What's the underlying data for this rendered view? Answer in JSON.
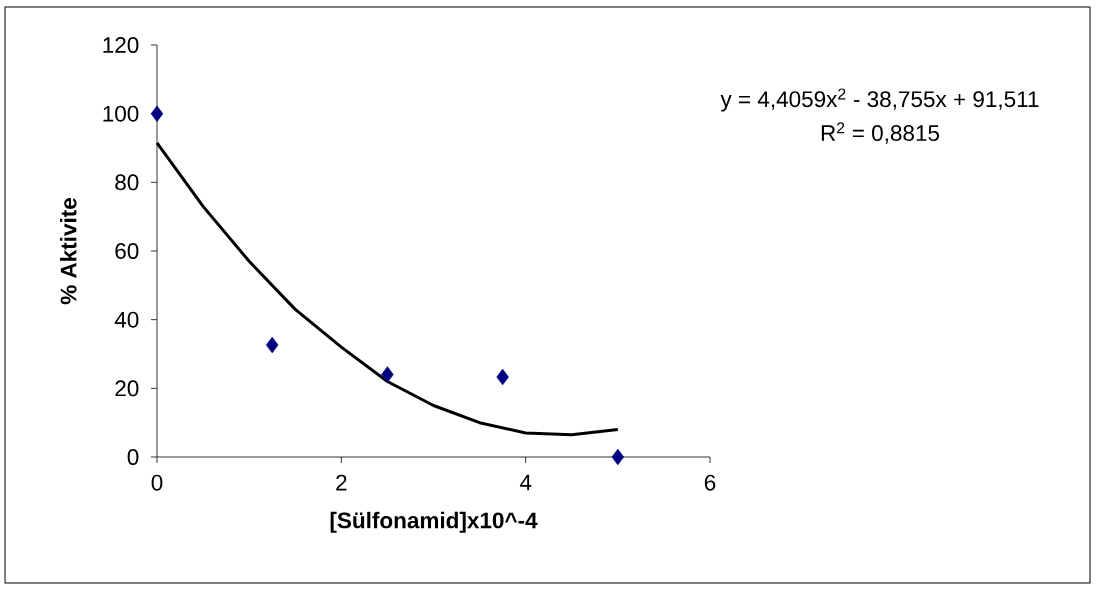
{
  "chart_data": {
    "type": "scatter",
    "xlabel": "[Sülfonamid]x10^-4",
    "ylabel": "% Aktivite",
    "xlim": [
      0,
      6
    ],
    "xticks": [
      0,
      2,
      4,
      6
    ],
    "ylim": [
      0,
      120
    ],
    "yticks": [
      0,
      20,
      40,
      60,
      80,
      100,
      120
    ],
    "grid": false,
    "series": [
      {
        "color": "#000080",
        "marker": "diamond",
        "x": [
          0,
          1.25,
          2.5,
          3.75,
          5
        ],
        "values": [
          100,
          32.6,
          24,
          23.3,
          0
        ]
      },
      {
        "type": "line",
        "color": "#000000",
        "marker": "none",
        "line_style": "solid",
        "x": [
          0,
          0.5,
          1,
          1.5,
          2,
          2.5,
          3,
          3.5,
          4,
          4.5,
          5
        ],
        "values": [
          91.5,
          73,
          57,
          43,
          32,
          22,
          15,
          10,
          7,
          6.5,
          8
        ]
      }
    ],
    "annotations": [
      "y = 4,4059x$^{2}$ - 38,755x + 91,511",
      "R$^{2}$ = 0,8815"
    ]
  }
}
